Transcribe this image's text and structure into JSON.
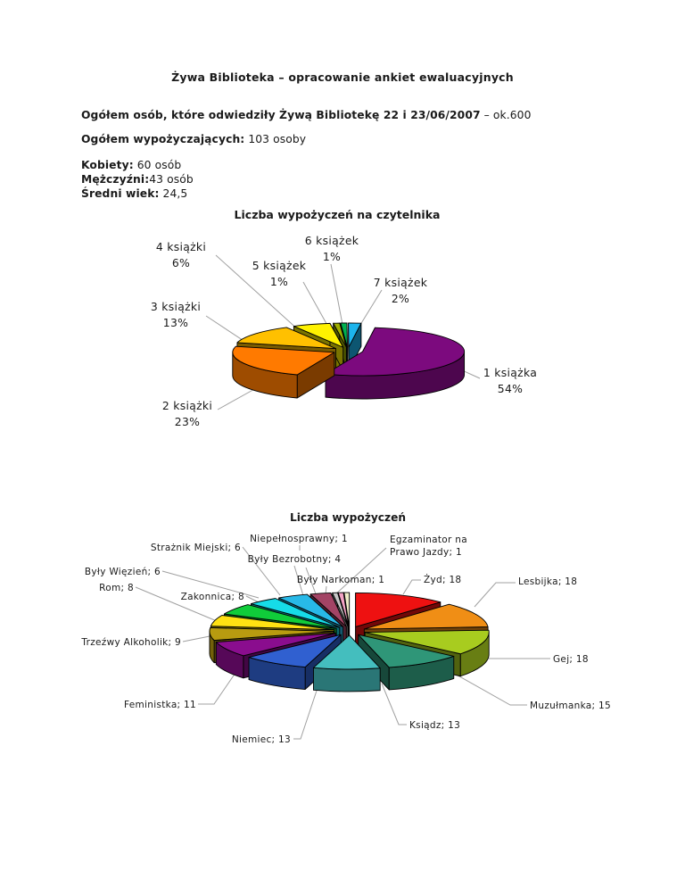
{
  "doc": {
    "title": "Żywa Biblioteka – opracowanie ankiet ewaluacyjnych",
    "visitors_label": "Ogółem osób, które odwiedziły Żywą Bibliotekę 22 i 23/06/2007",
    "visitors_value": " – ok.600",
    "borrowers_label": "Ogółem wypożyczających:",
    "borrowers_value": " 103 osoby",
    "women_label": "Kobiety:",
    "women_value": " 60 osób",
    "men_label": "Mężczyźni:",
    "men_value": "43 osób",
    "age_label": "Średni wiek:",
    "age_value": " 24,5"
  },
  "chart_data": [
    {
      "type": "pie",
      "style": "3d-exploded",
      "title": "Liczba wypożyczeń na czytelnika",
      "unit": "percent",
      "legend_position": "none",
      "slices": [
        {
          "label": "1 książka",
          "value": 54,
          "display": "54%",
          "color": "#7C0A7E",
          "callout_lines": [
            "1 książka",
            "54%"
          ]
        },
        {
          "label": "2 książki",
          "value": 23,
          "display": "23%",
          "color": "#FF7A00",
          "callout_lines": [
            "2 książki",
            "23%"
          ]
        },
        {
          "label": "3 książki",
          "value": 13,
          "display": "13%",
          "color": "#FFC000",
          "callout_lines": [
            "3 książki",
            "13%"
          ]
        },
        {
          "label": "4 książki",
          "value": 6,
          "display": "6%",
          "color": "#FFF200",
          "callout_lines": [
            "4 książki",
            "6%"
          ]
        },
        {
          "label": "5 książek",
          "value": 1,
          "display": "1%",
          "color": "#9FAE00",
          "callout_lines": [
            "5 książek",
            "1%"
          ]
        },
        {
          "label": "6 książek",
          "value": 1,
          "display": "1%",
          "color": "#00B050",
          "callout_lines": [
            "6 książek",
            "1%"
          ]
        },
        {
          "label": "7 książek",
          "value": 2,
          "display": "2%",
          "color": "#1CB4EC",
          "callout_lines": [
            "7 książek",
            "2%"
          ]
        }
      ]
    },
    {
      "type": "pie",
      "style": "3d-exploded",
      "title": "Liczba wypożyczeń",
      "unit": "count",
      "legend_position": "none",
      "slices": [
        {
          "label": "Żyd",
          "value": 18,
          "color": "#EE1111",
          "callout": "Żyd; 18"
        },
        {
          "label": "Lesbijka",
          "value": 18,
          "color": "#F08E15",
          "callout": "Lesbijka; 18"
        },
        {
          "label": "Gej",
          "value": 18,
          "color": "#A8CC1F",
          "callout": "Gej; 18"
        },
        {
          "label": "Muzułmanka",
          "value": 15,
          "color": "#2F9678",
          "callout": "Muzułmanka; 15"
        },
        {
          "label": "Ksiądz",
          "value": 13,
          "color": "#44BEBE",
          "callout": "Ksiądz; 13"
        },
        {
          "label": "Niemiec",
          "value": 13,
          "color": "#3060D0",
          "callout": "Niemiec; 13"
        },
        {
          "label": "Feministka",
          "value": 11,
          "color": "#8A0D8E",
          "callout": "Feministka; 11"
        },
        {
          "label": "Trzeźwy Alkoholik",
          "value": 9,
          "color": "#B89B10",
          "callout": "Trzeźwy Alkoholik; 9"
        },
        {
          "label": "Rom",
          "value": 8,
          "color": "#FFE113",
          "callout": "Rom; 8"
        },
        {
          "label": "Zakonnica",
          "value": 8,
          "color": "#10CC3A",
          "callout": "Zakonnica; 8"
        },
        {
          "label": "Były Więzień",
          "value": 6,
          "color": "#16DCE8",
          "callout": "Były Więzień; 6"
        },
        {
          "label": "Strażnik Miejski",
          "value": 6,
          "color": "#28B9E8",
          "callout": "Strażnik Miejski; 6"
        },
        {
          "label": "Były Bezrobotny",
          "value": 4,
          "color": "#A34465",
          "callout": "Były Bezrobotny; 4"
        },
        {
          "label": "Niepełnosprawny",
          "value": 1,
          "color": "#C6C6C6",
          "callout": "Niepełnosprawny; 1"
        },
        {
          "label": "Były Narkoman",
          "value": 1,
          "color": "#F2A2C4",
          "callout": "Były Narkoman; 1"
        },
        {
          "label": "Egzaminator na Prawo Jazdy",
          "value": 1,
          "color": "#EEEDC8",
          "callout_lines": [
            "Egzaminator na",
            "Prawo Jazdy; 1"
          ]
        }
      ]
    }
  ],
  "colors": {
    "leader_line": "#A0A0A0",
    "outline": "#000000",
    "text": "#1a1a1a",
    "background": "#ffffff"
  }
}
